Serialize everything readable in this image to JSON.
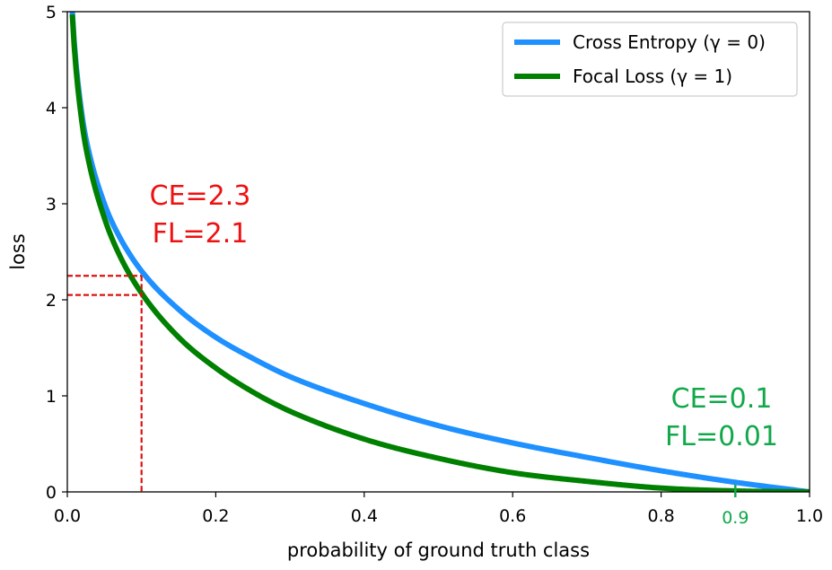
{
  "chart_data": {
    "type": "line",
    "title": "",
    "xlabel": "probability of ground truth class",
    "ylabel": "loss",
    "xlim": [
      0.0,
      1.0
    ],
    "ylim": [
      0,
      5
    ],
    "x_ticks": [
      "0.0",
      "0.2",
      "0.4",
      "0.6",
      "0.8",
      "1.0"
    ],
    "y_ticks": [
      "0",
      "1",
      "2",
      "3",
      "4",
      "5"
    ],
    "grid": false,
    "legend_position": "top-right",
    "series": [
      {
        "name": "Cross Entropy (γ = 0)",
        "gamma": 0,
        "color": "#1e90ff",
        "x": [
          0.0067,
          0.01,
          0.02,
          0.03,
          0.05,
          0.07,
          0.1,
          0.15,
          0.2,
          0.25,
          0.3,
          0.4,
          0.5,
          0.6,
          0.7,
          0.8,
          0.9,
          1.0
        ],
        "y": [
          5.0,
          4.61,
          3.91,
          3.51,
          3.0,
          2.66,
          2.3,
          1.9,
          1.61,
          1.39,
          1.2,
          0.92,
          0.69,
          0.51,
          0.36,
          0.22,
          0.1,
          0.0
        ]
      },
      {
        "name": "Focal Loss (γ = 1)",
        "gamma": 1,
        "color": "#008000",
        "x": [
          0.0067,
          0.01,
          0.02,
          0.03,
          0.05,
          0.07,
          0.1,
          0.15,
          0.2,
          0.25,
          0.3,
          0.4,
          0.5,
          0.6,
          0.7,
          0.8,
          0.9,
          1.0
        ],
        "y": [
          4.97,
          4.56,
          3.83,
          3.4,
          2.85,
          2.47,
          2.07,
          1.61,
          1.29,
          1.04,
          0.84,
          0.55,
          0.35,
          0.2,
          0.11,
          0.04,
          0.01,
          0.0
        ]
      }
    ],
    "annotations": [
      {
        "lines": [
          "CE=2.3",
          "FL=2.1"
        ],
        "color": "#ee1111"
      },
      {
        "lines": [
          "CE=0.1",
          "FL=0.01"
        ],
        "color": "#11a84a"
      }
    ],
    "reference_lines": [
      {
        "x": 0.1,
        "y_values": [
          2.25,
          2.05
        ],
        "color": "#dd1111",
        "style": "dashed"
      }
    ],
    "highlight_tick": {
      "x": 0.9,
      "label": "0.9",
      "color": "#11a84a"
    }
  }
}
